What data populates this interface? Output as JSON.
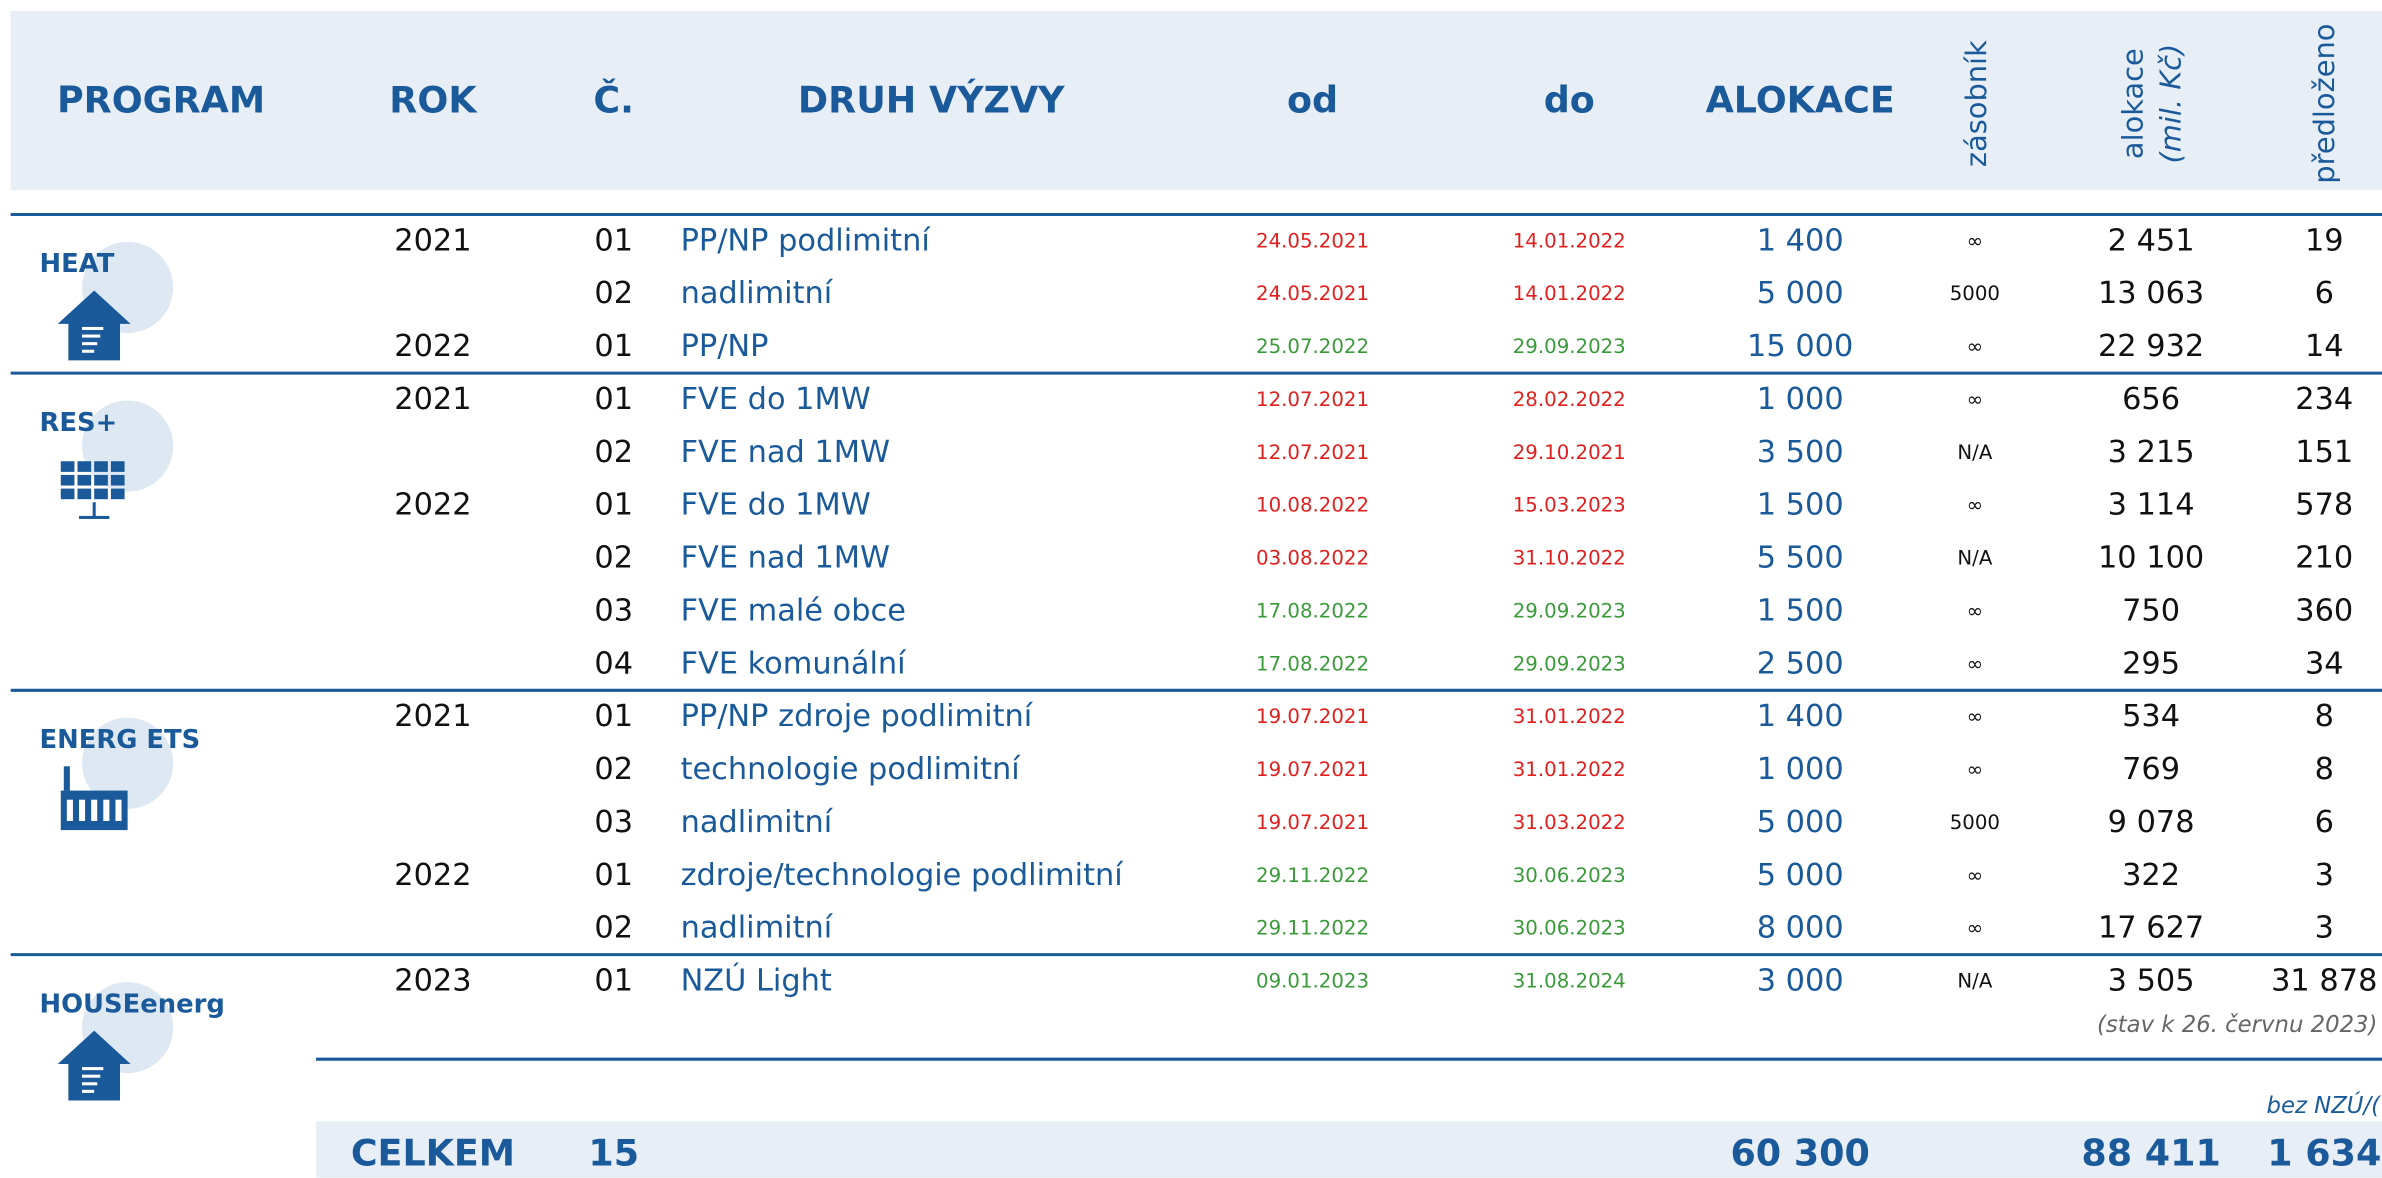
{
  "header": {
    "program": "PROGRAM",
    "year": "ROK",
    "number": "Č.",
    "type": "DRUH VÝZVY",
    "from": "od",
    "to": "do",
    "allocation": "ALOKACE",
    "reservoir": "zásobník",
    "allocation_mil": "alokace",
    "allocation_mil_unit": "(mil. Kč)",
    "submitted": "předloženo"
  },
  "groups": [
    {
      "program": "HEAT",
      "rows": [
        {
          "year": "2021",
          "number": "01",
          "type": "PP/NP podlimitní",
          "from": "24.05.2021",
          "to": "14.01.2022",
          "date_color": "#e0201e",
          "allocation": "1 400",
          "reservoir": "∞",
          "allocation_mil": "2 451",
          "submitted": "19"
        },
        {
          "year": null,
          "number": "02",
          "type": "nadlimitní",
          "from": "24.05.2021",
          "to": "14.01.2022",
          "date_color": "#e0201e",
          "allocation": "5 000",
          "reservoir": "5000",
          "allocation_mil": "13 063",
          "submitted": "6"
        },
        {
          "year": "2022",
          "number": "01",
          "type": "PP/NP",
          "from": "25.07.2022",
          "to": "29.09.2023",
          "date_color": "#3a9a3a",
          "allocation": "15 000",
          "reservoir": "∞",
          "allocation_mil": "22 932",
          "submitted": "14"
        }
      ]
    },
    {
      "program": "RES+",
      "rows": [
        {
          "year": "2021",
          "number": "01",
          "type": "FVE do 1MW",
          "from": "12.07.2021",
          "to": "28.02.2022",
          "date_color": "#e0201e",
          "allocation": "1 000",
          "reservoir": "∞",
          "allocation_mil": "656",
          "submitted": "234"
        },
        {
          "year": null,
          "number": "02",
          "type": "FVE nad 1MW",
          "from": "12.07.2021",
          "to": "29.10.2021",
          "date_color": "#e0201e",
          "allocation": "3 500",
          "reservoir": "N/A",
          "allocation_mil": "3 215",
          "submitted": "151"
        },
        {
          "year": "2022",
          "number": "01",
          "type": "FVE do 1MW",
          "from": "10.08.2022",
          "to": "15.03.2023",
          "date_color": "#e0201e",
          "allocation": "1 500",
          "reservoir": "∞",
          "allocation_mil": "3 114",
          "submitted": "578"
        },
        {
          "year": null,
          "number": "02",
          "type": "FVE nad 1MW",
          "from": "03.08.2022",
          "to": "31.10.2022",
          "date_color": "#e0201e",
          "allocation": "5 500",
          "reservoir": "N/A",
          "allocation_mil": "10 100",
          "submitted": "210"
        },
        {
          "year": null,
          "number": "03",
          "type": "FVE malé obce",
          "from": "17.08.2022",
          "to": "29.09.2023",
          "date_color": "#3a9a3a",
          "allocation": "1 500",
          "reservoir": "∞",
          "allocation_mil": "750",
          "submitted": "360"
        },
        {
          "year": null,
          "number": "04",
          "type": "FVE komunální",
          "from": "17.08.2022",
          "to": "29.09.2023",
          "date_color": "#3a9a3a",
          "allocation": "2 500",
          "reservoir": "∞",
          "allocation_mil": "295",
          "submitted": "34"
        }
      ]
    },
    {
      "program": "ENERG ETS",
      "rows": [
        {
          "year": "2021",
          "number": "01",
          "type": "PP/NP zdroje podlimitní",
          "from": "19.07.2021",
          "to": "31.01.2022",
          "date_color": "#e0201e",
          "allocation": "1 400",
          "reservoir": "∞",
          "allocation_mil": "534",
          "submitted": "8"
        },
        {
          "year": null,
          "number": "02",
          "type": "technologie podlimitní",
          "from": "19.07.2021",
          "to": "31.01.2022",
          "date_color": "#e0201e",
          "allocation": "1 000",
          "reservoir": "∞",
          "allocation_mil": "769",
          "submitted": "8"
        },
        {
          "year": null,
          "number": "03",
          "type": "nadlimitní",
          "from": "19.07.2021",
          "to": "31.03.2022",
          "date_color": "#e0201e",
          "allocation": "5 000",
          "reservoir": "5000",
          "allocation_mil": "9 078",
          "submitted": "6"
        },
        {
          "year": "2022",
          "number": "01",
          "type": "zdroje/technologie podlimitní",
          "from": "29.11.2022",
          "to": "30.06.2023",
          "date_color": "#3a9a3a",
          "allocation": "5 000",
          "reservoir": "∞",
          "allocation_mil": "322",
          "submitted": "3"
        },
        {
          "year": null,
          "number": "02",
          "type": "nadlimitní",
          "from": "29.11.2022",
          "to": "30.06.2023",
          "date_color": "#3a9a3a",
          "allocation": "8 000",
          "reservoir": "∞",
          "allocation_mil": "17 627",
          "submitted": "3"
        }
      ]
    },
    {
      "program": "HOUSEenerg",
      "rows": [
        {
          "year": "2023",
          "number": "01",
          "type": "NZÚ Light",
          "from": "09.01.2023",
          "to": "31.08.2024",
          "date_color": "#3a9a3a",
          "allocation": "3 000",
          "reservoir": "N/A",
          "allocation_mil": "3 505",
          "submitted": "31 878"
        }
      ]
    }
  ],
  "note": "(stav k 26. červnu 2023)",
  "note2": "bez NZÚ/(",
  "total": {
    "label": "CELKEM",
    "count": "15",
    "allocation": "60 300",
    "allocation_mil": "88 411",
    "submitted": "1 634"
  }
}
